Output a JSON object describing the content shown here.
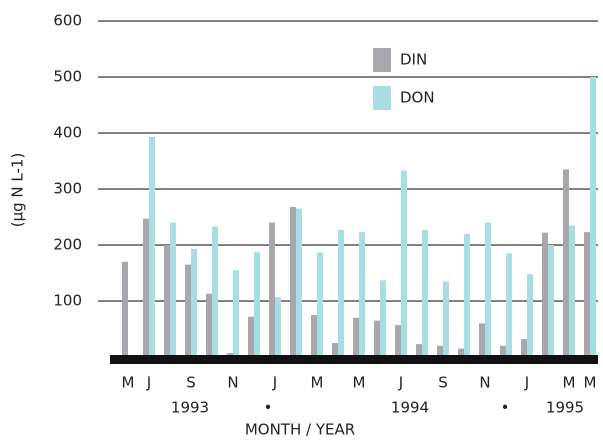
{
  "chart_data": {
    "type": "bar",
    "categories": [
      "M",
      "J",
      null,
      "S",
      null,
      "N",
      null,
      "J",
      null,
      "M",
      null,
      "M",
      null,
      "J",
      null,
      "S",
      null,
      "N",
      null,
      "J",
      null,
      "M",
      "M"
    ],
    "series": [
      {
        "name": "DIN",
        "color": "#a7a7ad",
        "values": [
          170,
          247,
          200,
          165,
          113,
          7,
          72,
          240,
          268,
          75,
          25,
          70,
          65,
          57,
          23,
          20,
          15,
          60,
          20,
          32,
          222,
          335,
          223
        ]
      },
      {
        "name": "DON",
        "color": "#a9dde4",
        "values": [
          null,
          393,
          240,
          193,
          233,
          155,
          187,
          107,
          265,
          187,
          227,
          223,
          137,
          333,
          227,
          135,
          220,
          240,
          185,
          148,
          200,
          235,
          500
        ]
      }
    ],
    "year_labels": [
      "1993",
      "•",
      "1994",
      "•",
      "1995"
    ],
    "x_label": "MONTH / YEAR",
    "y_label": "(µg N L-1)",
    "ylim": [
      0,
      600
    ],
    "yticks": [
      100,
      200,
      300,
      400,
      500,
      600
    ],
    "grid": true
  }
}
